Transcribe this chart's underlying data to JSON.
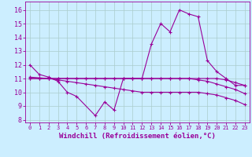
{
  "xlabel": "Windchill (Refroidissement éolien,°C)",
  "background_color": "#cceeff",
  "line_color": "#990099",
  "grid_color": "#aacccc",
  "x_hours": [
    0,
    1,
    2,
    3,
    4,
    5,
    6,
    7,
    8,
    9,
    10,
    11,
    12,
    13,
    14,
    15,
    16,
    17,
    18,
    19,
    20,
    21,
    22,
    23
  ],
  "series1_y": [
    12.0,
    11.3,
    11.1,
    10.8,
    10.0,
    9.7,
    null,
    8.3,
    9.3,
    8.7,
    11.0,
    11.0,
    11.0,
    13.5,
    15.0,
    14.4,
    16.0,
    15.7,
    15.5,
    12.3,
    11.5,
    11.0,
    10.5,
    10.5
  ],
  "series2_y": [
    11.0,
    11.0,
    11.0,
    10.9,
    10.8,
    10.7,
    10.6,
    10.5,
    10.4,
    10.3,
    10.2,
    10.1,
    10.0,
    10.0,
    10.0,
    10.0,
    10.0,
    10.0,
    10.0,
    9.9,
    9.8,
    9.6,
    9.4,
    9.1
  ],
  "series3_y": [
    11.1,
    11.05,
    11.0,
    11.0,
    11.0,
    11.0,
    11.0,
    11.0,
    11.0,
    11.0,
    11.0,
    11.0,
    11.0,
    11.0,
    11.0,
    11.0,
    11.0,
    11.0,
    11.0,
    11.0,
    11.0,
    10.9,
    10.7,
    10.5
  ],
  "series4_y": [
    11.0,
    11.0,
    11.0,
    11.0,
    11.0,
    11.0,
    11.0,
    11.0,
    11.0,
    11.0,
    11.0,
    11.0,
    11.0,
    11.0,
    11.0,
    11.0,
    11.0,
    11.0,
    10.9,
    10.8,
    10.6,
    10.4,
    10.2,
    9.9
  ],
  "xlim": [
    -0.5,
    23.5
  ],
  "ylim": [
    7.8,
    16.6
  ],
  "yticks": [
    8,
    9,
    10,
    11,
    12,
    13,
    14,
    15,
    16
  ],
  "xticks": [
    0,
    1,
    2,
    3,
    4,
    5,
    6,
    7,
    8,
    9,
    10,
    11,
    12,
    13,
    14,
    15,
    16,
    17,
    18,
    19,
    20,
    21,
    22,
    23
  ],
  "marker": "+"
}
